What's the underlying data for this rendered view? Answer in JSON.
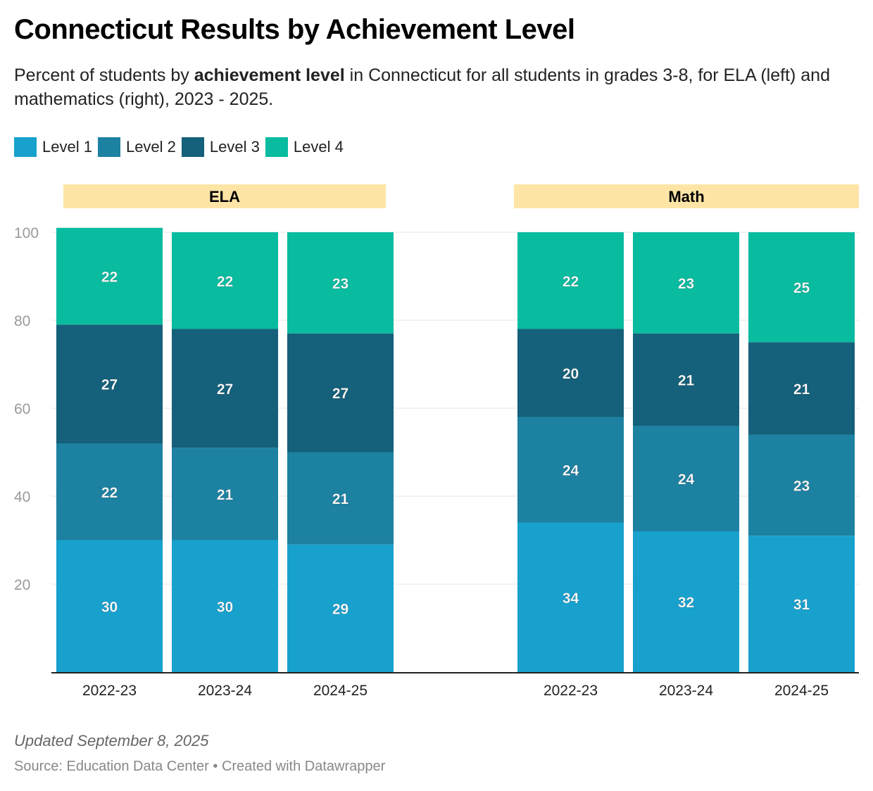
{
  "title": "Connecticut Results by Achievement Level",
  "subtitle": {
    "pre": "Percent of students by ",
    "bold": "achievement level",
    "post": " in Connecticut for all students in grades 3-8, for ELA (left) and mathematics (right), 2023 - 2025."
  },
  "footer": {
    "updated": "Updated September 8, 2025",
    "source": "Source: Education Data Center • Created with Datawrapper"
  },
  "chart_data": {
    "type": "bar",
    "stacked": true,
    "ylim": [
      0,
      100
    ],
    "yticks": [
      20,
      40,
      60,
      80,
      100
    ],
    "grid": true,
    "legend_position": "top-left",
    "legend": [
      {
        "name": "Level 1",
        "color": "#18a1cd"
      },
      {
        "name": "Level 2",
        "color": "#1d81a2"
      },
      {
        "name": "Level 3",
        "color": "#15607a"
      },
      {
        "name": "Level 4",
        "color": "#09bb9f"
      }
    ],
    "panels": [
      {
        "title": "ELA",
        "categories": [
          "2022-23",
          "2023-24",
          "2024-25"
        ],
        "series": [
          {
            "name": "Level 1",
            "values": [
              30,
              30,
              29
            ]
          },
          {
            "name": "Level 2",
            "values": [
              22,
              21,
              21
            ]
          },
          {
            "name": "Level 3",
            "values": [
              27,
              27,
              27
            ]
          },
          {
            "name": "Level 4",
            "values": [
              22,
              22,
              23
            ]
          }
        ]
      },
      {
        "title": "Math",
        "categories": [
          "2022-23",
          "2023-24",
          "2024-25"
        ],
        "series": [
          {
            "name": "Level 1",
            "values": [
              34,
              32,
              31
            ]
          },
          {
            "name": "Level 2",
            "values": [
              24,
              24,
              23
            ]
          },
          {
            "name": "Level 3",
            "values": [
              20,
              21,
              21
            ]
          },
          {
            "name": "Level 4",
            "values": [
              22,
              23,
              25
            ]
          }
        ]
      }
    ],
    "panel_header_color": "#fee5a6"
  }
}
